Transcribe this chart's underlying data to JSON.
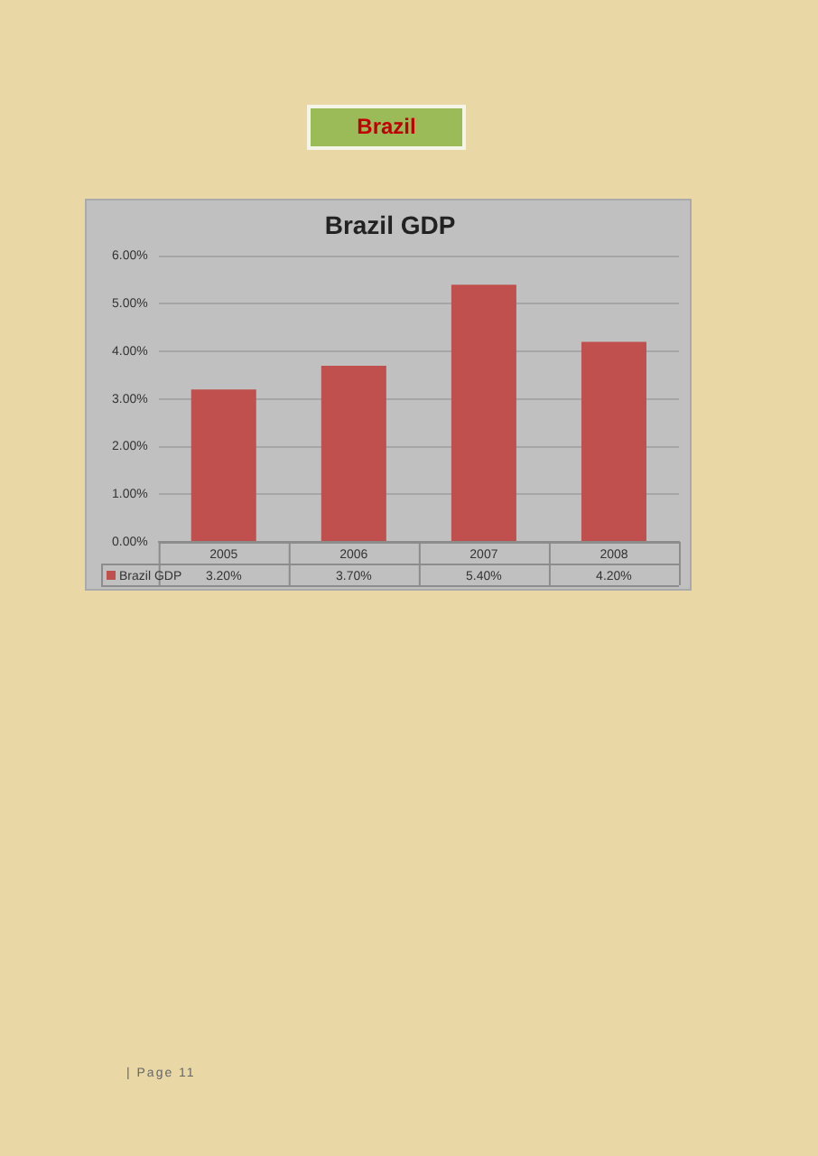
{
  "chart_data": {
    "type": "bar",
    "title": "Brazil GDP",
    "categories": [
      "2005",
      "2006",
      "2007",
      "2008"
    ],
    "series": [
      {
        "name": "Brazil GDP",
        "color": "#c0504d",
        "values": [
          3.2,
          3.7,
          5.4,
          4.2
        ],
        "value_labels": [
          "3.20%",
          "3.70%",
          "5.40%",
          "4.20%"
        ]
      }
    ],
    "ylim": [
      0,
      6
    ],
    "yticks": [
      {
        "value": 0,
        "label": "0.00%"
      },
      {
        "value": 1,
        "label": "1.00%"
      },
      {
        "value": 2,
        "label": "2.00%"
      },
      {
        "value": 3,
        "label": "3.00%"
      },
      {
        "value": 4,
        "label": "4.00%"
      },
      {
        "value": 5,
        "label": "5.00%"
      },
      {
        "value": 6,
        "label": "6.00%"
      }
    ],
    "grid": "y",
    "legend": "bottom",
    "annotations": [
      "Brazil",
      "| Page 11"
    ]
  }
}
